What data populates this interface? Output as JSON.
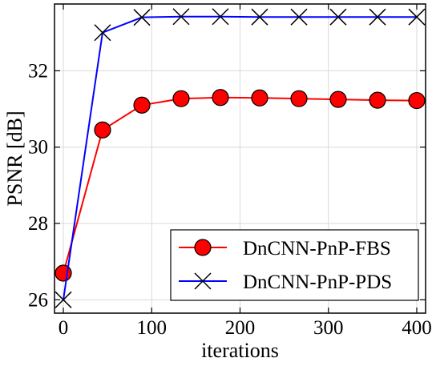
{
  "chart_data": {
    "type": "line",
    "title": "",
    "xlabel": "iterations",
    "ylabel": "PSNR [dB]",
    "xlim": [
      -10,
      410
    ],
    "ylim": [
      25.65,
      33.75
    ],
    "x": [
      0,
      44.4,
      88.9,
      133.3,
      177.8,
      222.2,
      266.7,
      311.1,
      355.6,
      400
    ],
    "xticks": [
      0,
      100,
      200,
      300,
      400
    ],
    "xtick_labels": [
      "0",
      "100",
      "200",
      "300",
      "400"
    ],
    "yticks": [
      26,
      28,
      30,
      32
    ],
    "ytick_labels": [
      "26",
      "28",
      "30",
      "32"
    ],
    "grid": true,
    "legend_position": "lower-right",
    "series": [
      {
        "name": "DnCNN-PnP-FBS",
        "color": "#ff0000",
        "marker": "circle",
        "marker_fill": "#ff0000",
        "values": [
          26.7,
          30.45,
          31.1,
          31.27,
          31.3,
          31.29,
          31.27,
          31.25,
          31.23,
          31.22
        ]
      },
      {
        "name": "DnCNN-PnP-PDS",
        "color": "#0000ff",
        "marker": "x",
        "values": [
          26.0,
          33.0,
          33.4,
          33.42,
          33.42,
          33.41,
          33.41,
          33.41,
          33.41,
          33.41
        ]
      }
    ]
  }
}
